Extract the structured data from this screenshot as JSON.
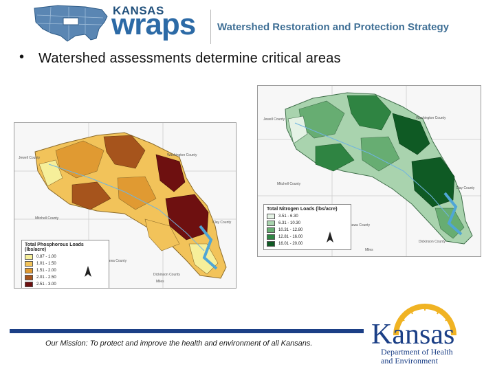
{
  "header": {
    "logo_line1": "KANSAS",
    "logo_line2": "wraps",
    "tagline": "Watershed Restoration and Protection Strategy"
  },
  "slide": {
    "bullet_marker": "•",
    "bullet_text": "Watershed assessments determine critical areas"
  },
  "phosphorus_map": {
    "legend_title": "Total Phosphorous Loads (lbs/acre)",
    "legend_items": [
      {
        "label": "0.87 - 1.00",
        "color": "#f6ef9a"
      },
      {
        "label": "1.01 - 1.50",
        "color": "#f2c35a"
      },
      {
        "label": "1.51 - 2.00",
        "color": "#e09a32"
      },
      {
        "label": "2.01 - 2.50",
        "color": "#a6541c"
      },
      {
        "label": "2.51 - 3.00",
        "color": "#6e1010"
      }
    ],
    "county_labels": [
      "Jewell County",
      "Washington County",
      "Mitchell County",
      "Clay County",
      "Ottawa County",
      "Dickinson County"
    ],
    "scale_label": "Miles"
  },
  "nitrogen_map": {
    "legend_title": "Total Nitrogen Loads (lbs/acre)",
    "legend_items": [
      {
        "label": "3.51 - 6.30",
        "color": "#e5f2e5"
      },
      {
        "label": "6.31 - 10.30",
        "color": "#a9d3ae"
      },
      {
        "label": "10.31 - 12.80",
        "color": "#67ad72"
      },
      {
        "label": "12.81 - 16.00",
        "color": "#2f8442"
      },
      {
        "label": "16.01 - 20.00",
        "color": "#0f5a24"
      }
    ],
    "county_labels": [
      "Jewell County",
      "Washington County",
      "Mitchell County",
      "Clay County",
      "Ottawa County",
      "Dickinson County"
    ],
    "scale_label": "Miles"
  },
  "footer": {
    "mission": "Our Mission: To protect and improve the health and environment of all Kansans.",
    "kdhe_name": "Kansas",
    "kdhe_line1": "Department of Health",
    "kdhe_line2": "and Environment",
    "colors": {
      "rule": "#1b3f86",
      "brand_blue": "#1b3f86",
      "sun_gold": "#f0b323"
    }
  }
}
